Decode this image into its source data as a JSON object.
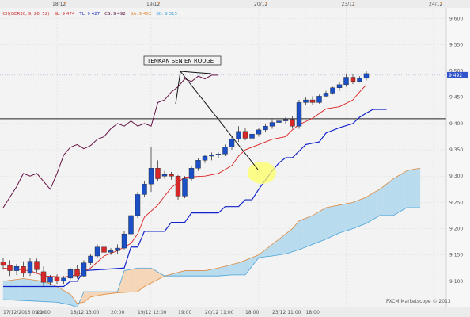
{
  "chart_data": {
    "type": "candlestick",
    "indicator_legend": [
      {
        "text": "ICH(GER30, 9, 26, 52)",
        "color": "#cc3333"
      },
      {
        "text": "SL: 9 474",
        "color": "#cc3333"
      },
      {
        "text": "TL: 9 427",
        "color": "#2233bb"
      },
      {
        "text": "CS: 9 492",
        "color": "#551144"
      },
      {
        "text": "SA: 9 452",
        "color": "#e08a3c"
      },
      {
        "text": "SB: 9 315",
        "color": "#4aa3d8"
      }
    ],
    "date_labels": [
      {
        "label": "18/12",
        "x": 8
      },
      {
        "label": "19/12",
        "x": 22
      },
      {
        "label": "20/12",
        "x": 38
      },
      {
        "label": "23/12",
        "x": 51
      },
      {
        "label": "24/12",
        "x": 64
      }
    ],
    "time_labels": [
      {
        "label": "17/12/2013 09:00",
        "x": 0
      },
      {
        "label": "21:00",
        "x": 5
      },
      {
        "label": "18/12 13:00",
        "x": 10
      },
      {
        "label": "20:00",
        "x": 16
      },
      {
        "label": "19/12 12:00",
        "x": 20
      },
      {
        "label": "19:00",
        "x": 26
      },
      {
        "label": "20/12 11:00",
        "x": 30
      },
      {
        "label": "18:00",
        "x": 36
      },
      {
        "label": "23/12 11:00",
        "x": 40
      },
      {
        "label": "18:00",
        "x": 45
      }
    ],
    "y_ticks": [
      {
        "label": "9 600",
        "value": 9600
      },
      {
        "label": "9 550",
        "value": 9550
      },
      {
        "label": "9 500",
        "value": 9500
      },
      {
        "label": "9 450",
        "value": 9450
      },
      {
        "label": "9 400",
        "value": 9400
      },
      {
        "label": "9 350",
        "value": 9350
      },
      {
        "label": "9 300",
        "value": 9300
      },
      {
        "label": "9 250",
        "value": 9250
      },
      {
        "label": "9 200",
        "value": 9200
      },
      {
        "label": "9 150",
        "value": 9150
      },
      {
        "label": "9 100",
        "value": 9100
      }
    ],
    "ylim": [
      9050,
      9620
    ],
    "xlim": [
      0,
      66
    ],
    "current_price_label": "9 492",
    "current_price": 9492,
    "horizontal_level": 9409,
    "candles": [
      {
        "x": 0,
        "o": 9137,
        "h": 9145,
        "c": 9130,
        "l": 9122
      },
      {
        "x": 1,
        "o": 9130,
        "h": 9140,
        "c": 9120,
        "l": 9110
      },
      {
        "x": 2,
        "o": 9120,
        "h": 9133,
        "c": 9128,
        "l": 9112
      },
      {
        "x": 3,
        "o": 9128,
        "h": 9138,
        "c": 9115,
        "l": 9108
      },
      {
        "x": 4,
        "o": 9115,
        "h": 9145,
        "c": 9138,
        "l": 9110
      },
      {
        "x": 5,
        "o": 9138,
        "h": 9143,
        "c": 9122,
        "l": 9115
      },
      {
        "x": 6,
        "o": 9118,
        "h": 9128,
        "c": 9098,
        "l": 9090
      },
      {
        "x": 7,
        "o": 9098,
        "h": 9112,
        "c": 9108,
        "l": 9092
      },
      {
        "x": 8,
        "o": 9108,
        "h": 9113,
        "c": 9100,
        "l": 9095
      },
      {
        "x": 9,
        "o": 9100,
        "h": 9110,
        "c": 9106,
        "l": 9095
      },
      {
        "x": 10,
        "o": 9106,
        "h": 9125,
        "c": 9122,
        "l": 9104
      },
      {
        "x": 11,
        "o": 9122,
        "h": 9130,
        "c": 9110,
        "l": 9105
      },
      {
        "x": 12,
        "o": 9110,
        "h": 9140,
        "c": 9135,
        "l": 9108
      },
      {
        "x": 13,
        "o": 9135,
        "h": 9152,
        "c": 9148,
        "l": 9130
      },
      {
        "x": 14,
        "o": 9148,
        "h": 9170,
        "c": 9165,
        "l": 9145
      },
      {
        "x": 15,
        "o": 9165,
        "h": 9172,
        "c": 9155,
        "l": 9150
      },
      {
        "x": 16,
        "o": 9155,
        "h": 9163,
        "c": 9158,
        "l": 9150
      },
      {
        "x": 17,
        "o": 9158,
        "h": 9170,
        "c": 9163,
        "l": 9152
      },
      {
        "x": 18,
        "o": 9163,
        "h": 9195,
        "c": 9190,
        "l": 9160
      },
      {
        "x": 19,
        "o": 9190,
        "h": 9230,
        "c": 9225,
        "l": 9185
      },
      {
        "x": 20,
        "o": 9225,
        "h": 9270,
        "c": 9265,
        "l": 9220
      },
      {
        "x": 21,
        "o": 9265,
        "h": 9290,
        "c": 9285,
        "l": 9260
      },
      {
        "x": 22,
        "o": 9285,
        "h": 9355,
        "c": 9315,
        "l": 9270
      },
      {
        "x": 23,
        "o": 9315,
        "h": 9330,
        "c": 9295,
        "l": 9290
      },
      {
        "x": 24,
        "o": 9300,
        "h": 9310,
        "c": 9303,
        "l": 9295
      },
      {
        "x": 25,
        "o": 9303,
        "h": 9308,
        "c": 9300,
        "l": 9293
      },
      {
        "x": 26,
        "o": 9300,
        "h": 9302,
        "c": 9262,
        "l": 9255
      },
      {
        "x": 27,
        "o": 9262,
        "h": 9300,
        "c": 9295,
        "l": 9258
      },
      {
        "x": 28,
        "o": 9295,
        "h": 9320,
        "c": 9315,
        "l": 9290
      },
      {
        "x": 29,
        "o": 9315,
        "h": 9335,
        "c": 9330,
        "l": 9310
      },
      {
        "x": 30,
        "o": 9330,
        "h": 9340,
        "c": 9338,
        "l": 9325
      },
      {
        "x": 31,
        "o": 9338,
        "h": 9345,
        "c": 9340,
        "l": 9330
      },
      {
        "x": 32,
        "o": 9340,
        "h": 9345,
        "c": 9342,
        "l": 9335
      },
      {
        "x": 33,
        "o": 9342,
        "h": 9360,
        "c": 9355,
        "l": 9338
      },
      {
        "x": 34,
        "o": 9355,
        "h": 9375,
        "c": 9370,
        "l": 9350
      },
      {
        "x": 35,
        "o": 9370,
        "h": 9395,
        "c": 9385,
        "l": 9365
      },
      {
        "x": 36,
        "o": 9385,
        "h": 9392,
        "c": 9372,
        "l": 9368
      },
      {
        "x": 37,
        "o": 9372,
        "h": 9385,
        "c": 9380,
        "l": 9355
      },
      {
        "x": 38,
        "o": 9380,
        "h": 9392,
        "c": 9388,
        "l": 9375
      },
      {
        "x": 39,
        "o": 9388,
        "h": 9400,
        "c": 9395,
        "l": 9383
      },
      {
        "x": 40,
        "o": 9395,
        "h": 9408,
        "c": 9402,
        "l": 9390
      },
      {
        "x": 41,
        "o": 9402,
        "h": 9410,
        "c": 9405,
        "l": 9398
      },
      {
        "x": 42,
        "o": 9405,
        "h": 9412,
        "c": 9408,
        "l": 9400
      },
      {
        "x": 43,
        "o": 9408,
        "h": 9415,
        "c": 9395,
        "l": 9390
      },
      {
        "x": 44,
        "o": 9395,
        "h": 9445,
        "c": 9440,
        "l": 9390
      },
      {
        "x": 45,
        "o": 9440,
        "h": 9450,
        "c": 9445,
        "l": 9435
      },
      {
        "x": 46,
        "o": 9445,
        "h": 9452,
        "c": 9440,
        "l": 9435
      },
      {
        "x": 47,
        "o": 9440,
        "h": 9455,
        "c": 9452,
        "l": 9438
      },
      {
        "x": 48,
        "o": 9452,
        "h": 9462,
        "c": 9458,
        "l": 9450
      },
      {
        "x": 49,
        "o": 9458,
        "h": 9470,
        "c": 9468,
        "l": 9455
      },
      {
        "x": 50,
        "o": 9468,
        "h": 9480,
        "c": 9474,
        "l": 9462
      },
      {
        "x": 51,
        "o": 9474,
        "h": 9495,
        "c": 9488,
        "l": 9470
      },
      {
        "x": 52,
        "o": 9488,
        "h": 9495,
        "c": 9480,
        "l": 9475
      },
      {
        "x": 53,
        "o": 9480,
        "h": 9490,
        "c": 9486,
        "l": 9478
      },
      {
        "x": 54,
        "o": 9486,
        "h": 9500,
        "c": 9495,
        "l": 9482
      }
    ],
    "tenkan": {
      "name": "Tenkan",
      "color": "#dd2222",
      "points": [
        [
          0,
          9125
        ],
        [
          4,
          9120
        ],
        [
          6,
          9110
        ],
        [
          9,
          9108
        ],
        [
          11,
          9112
        ],
        [
          13,
          9125
        ],
        [
          15,
          9148
        ],
        [
          17,
          9158
        ],
        [
          19,
          9172
        ],
        [
          20,
          9190
        ],
        [
          21,
          9222
        ],
        [
          23,
          9245
        ],
        [
          24,
          9262
        ],
        [
          25,
          9278
        ],
        [
          27,
          9298
        ],
        [
          30,
          9300
        ],
        [
          32,
          9305
        ],
        [
          34,
          9320
        ],
        [
          35,
          9338
        ],
        [
          36,
          9350
        ],
        [
          38,
          9360
        ],
        [
          40,
          9370
        ],
        [
          42,
          9375
        ],
        [
          43,
          9388
        ],
        [
          44,
          9398
        ],
        [
          46,
          9410
        ],
        [
          48,
          9428
        ],
        [
          50,
          9432
        ],
        [
          52,
          9445
        ],
        [
          53,
          9460
        ],
        [
          54,
          9474
        ]
      ]
    },
    "kijun": {
      "name": "Kijun",
      "color": "#1122cc",
      "points": [
        [
          0,
          9090
        ],
        [
          9,
          9090
        ],
        [
          10,
          9100
        ],
        [
          11,
          9100
        ],
        [
          12,
          9120
        ],
        [
          18,
          9125
        ],
        [
          19,
          9165
        ],
        [
          20,
          9165
        ],
        [
          21,
          9195
        ],
        [
          24,
          9195
        ],
        [
          25,
          9212
        ],
        [
          27,
          9212
        ],
        [
          28,
          9230
        ],
        [
          32,
          9230
        ],
        [
          33,
          9242
        ],
        [
          35,
          9242
        ],
        [
          36,
          9255
        ],
        [
          37,
          9255
        ],
        [
          38,
          9275
        ],
        [
          40,
          9310
        ],
        [
          41,
          9325
        ],
        [
          42,
          9335
        ],
        [
          43,
          9335
        ],
        [
          45,
          9360
        ],
        [
          47,
          9365
        ],
        [
          48,
          9382
        ],
        [
          50,
          9392
        ],
        [
          52,
          9400
        ],
        [
          53,
          9412
        ],
        [
          54,
          9420
        ],
        [
          55,
          9427
        ],
        [
          57,
          9427
        ]
      ]
    },
    "chikou": {
      "name": "Chikou",
      "color": "#661144",
      "points": [
        [
          0,
          9240
        ],
        [
          2,
          9280
        ],
        [
          3,
          9305
        ],
        [
          4,
          9300
        ],
        [
          5,
          9305
        ],
        [
          6,
          9290
        ],
        [
          7,
          9275
        ],
        [
          8,
          9305
        ],
        [
          9,
          9340
        ],
        [
          10,
          9355
        ],
        [
          11,
          9360
        ],
        [
          12,
          9352
        ],
        [
          13,
          9358
        ],
        [
          14,
          9370
        ],
        [
          15,
          9375
        ],
        [
          16,
          9390
        ],
        [
          17,
          9400
        ],
        [
          18,
          9395
        ],
        [
          19,
          9405
        ],
        [
          20,
          9395
        ],
        [
          21,
          9400
        ],
        [
          22,
          9395
        ],
        [
          23,
          9440
        ],
        [
          24,
          9445
        ],
        [
          25,
          9460
        ],
        [
          26,
          9470
        ],
        [
          27,
          9485
        ],
        [
          28,
          9480
        ],
        [
          29,
          9490
        ],
        [
          30,
          9485
        ],
        [
          31,
          9492
        ],
        [
          32,
          9492
        ]
      ]
    },
    "senkou_a": {
      "name": "Senkou A",
      "color": "#e08a3c",
      "points": [
        [
          0,
          9100
        ],
        [
          3,
          9105
        ],
        [
          6,
          9100
        ],
        [
          8,
          9090
        ],
        [
          10,
          9075
        ],
        [
          11,
          9058
        ],
        [
          12,
          9060
        ],
        [
          13,
          9070
        ],
        [
          15,
          9075
        ],
        [
          17,
          9078
        ],
        [
          20,
          9080
        ],
        [
          21,
          9090
        ],
        [
          24,
          9110
        ],
        [
          27,
          9120
        ],
        [
          30,
          9120
        ],
        [
          32,
          9125
        ],
        [
          35,
          9135
        ],
        [
          36,
          9140
        ],
        [
          38,
          9150
        ],
        [
          42,
          9190
        ],
        [
          43,
          9200
        ],
        [
          44,
          9215
        ],
        [
          46,
          9225
        ],
        [
          48,
          9240
        ],
        [
          50,
          9245
        ],
        [
          52,
          9250
        ],
        [
          54,
          9260
        ],
        [
          55,
          9268
        ],
        [
          56,
          9275
        ],
        [
          58,
          9295
        ],
        [
          60,
          9310
        ],
        [
          61,
          9313
        ],
        [
          62,
          9315
        ]
      ]
    },
    "senkou_b": {
      "name": "Senkou B",
      "color": "#4aa3d8",
      "points": [
        [
          0,
          9065
        ],
        [
          5,
          9062
        ],
        [
          8,
          9060
        ],
        [
          10,
          9055
        ],
        [
          11,
          9050
        ],
        [
          12,
          9080
        ],
        [
          17,
          9080
        ],
        [
          18,
          9120
        ],
        [
          20,
          9125
        ],
        [
          22,
          9125
        ],
        [
          24,
          9110
        ],
        [
          26,
          9110
        ],
        [
          28,
          9110
        ],
        [
          30,
          9110
        ],
        [
          32,
          9110
        ],
        [
          34,
          9112
        ],
        [
          36,
          9112
        ],
        [
          38,
          9145
        ],
        [
          40,
          9148
        ],
        [
          42,
          9152
        ],
        [
          44,
          9160
        ],
        [
          46,
          9170
        ],
        [
          48,
          9180
        ],
        [
          50,
          9192
        ],
        [
          52,
          9200
        ],
        [
          54,
          9210
        ],
        [
          56,
          9225
        ],
        [
          58,
          9225
        ],
        [
          60,
          9240
        ],
        [
          62,
          9240
        ]
      ]
    },
    "annotation": {
      "text": "TENKAN SEN EN ROUGE"
    },
    "credit": "FXCM Marketscope © 2013"
  }
}
